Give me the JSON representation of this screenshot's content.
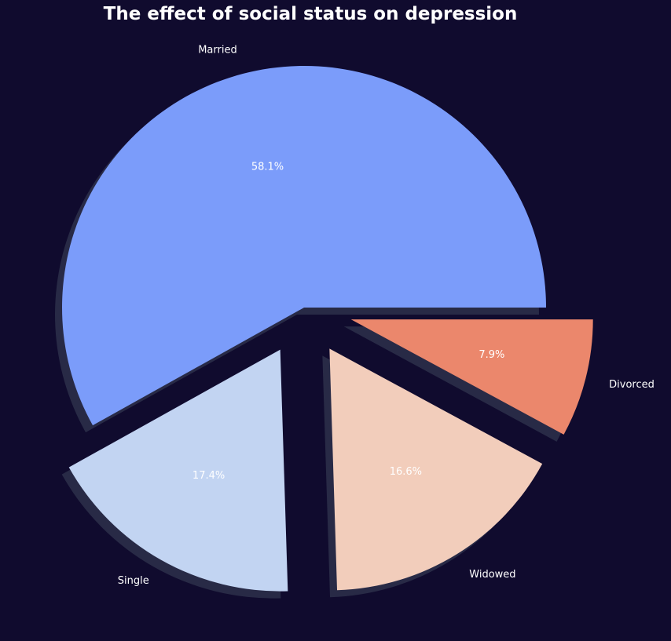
{
  "chart_data": {
    "type": "pie",
    "title": "The effect of social status on depression",
    "categories": [
      "Married",
      "Single",
      "Widowed",
      "Divorced"
    ],
    "values": [
      58.1,
      17.4,
      16.6,
      7.9
    ],
    "percent_labels": [
      "58.1%",
      "17.4%",
      "16.6%",
      "7.9%"
    ],
    "explode": [
      0,
      0.2,
      0.2,
      0.2
    ],
    "shadow": true,
    "start_angle_deg": 0,
    "direction": "counterclockwise",
    "colors": [
      "#7b9cfa",
      "#c2d4f2",
      "#f2cdbb",
      "#eb876c"
    ],
    "background": "#100b2e",
    "label_color": "#ffffff"
  }
}
